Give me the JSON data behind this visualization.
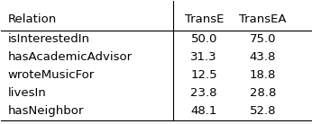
{
  "col_headers": [
    "Relation",
    "TransE",
    "TransEA"
  ],
  "rows": [
    [
      "isInterestedIn",
      "50.0",
      "75.0"
    ],
    [
      "hasAcademicAdvisor",
      "31.3",
      "43.8"
    ],
    [
      "wroteMusicFor",
      "12.5",
      "18.8"
    ],
    [
      "livesIn",
      "23.8",
      "28.8"
    ],
    [
      "hasNeighbor",
      "48.1",
      "52.8"
    ]
  ],
  "background_color": "#ffffff",
  "text_color": "#000000",
  "line_color": "#000000",
  "font_size": 9.5,
  "header_font_size": 9.5
}
